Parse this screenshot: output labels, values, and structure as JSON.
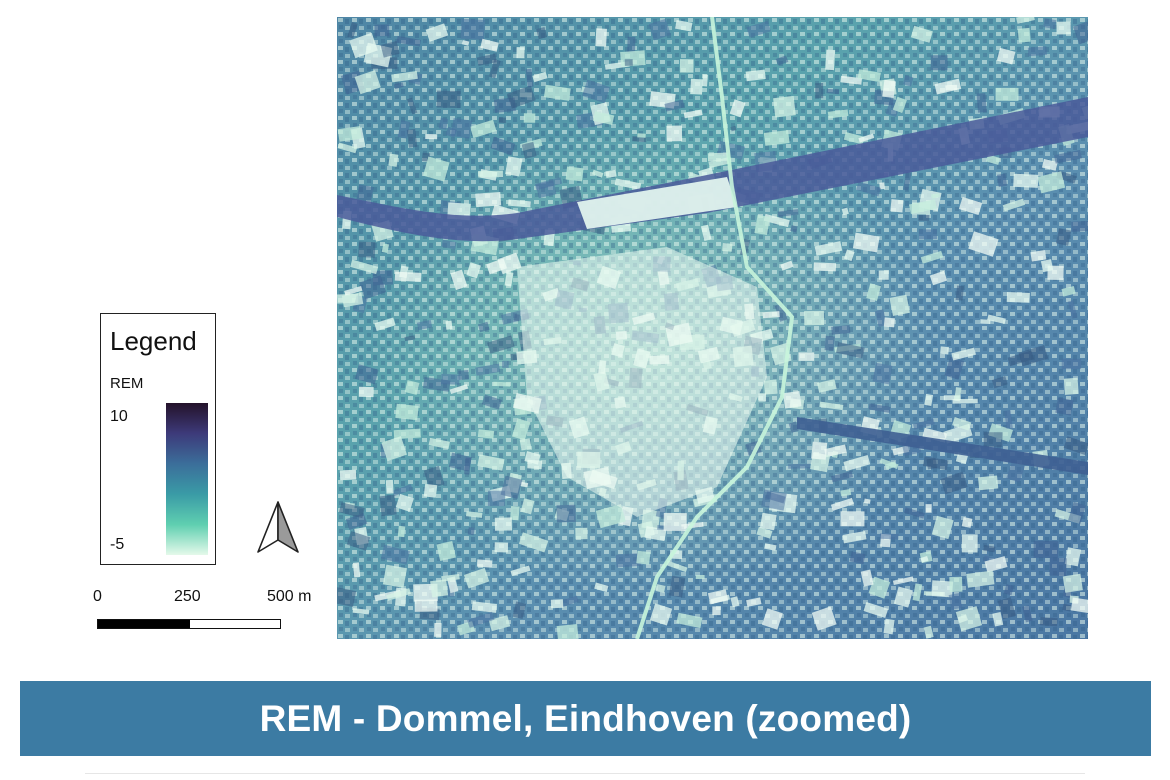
{
  "title": "REM - Dommel, Eindhoven (zoomed)",
  "legend": {
    "title": "Legend",
    "layer_name": "REM",
    "max_label": "10",
    "min_label": "-5",
    "ramp_colors": [
      "#24122a",
      "#3d3a7a",
      "#3b6e9a",
      "#3a9ba6",
      "#5fcfb0",
      "#e4f9ea"
    ]
  },
  "scale_bar": {
    "labels": [
      "0",
      "250",
      "500 m"
    ]
  },
  "north_arrow": {
    "icon": "north-arrow-icon"
  },
  "map": {
    "colors": {
      "low": "#e8fbf2",
      "mid": "#5fa9ad",
      "high": "#3e5f92",
      "railway": "#4a5a9a"
    }
  }
}
